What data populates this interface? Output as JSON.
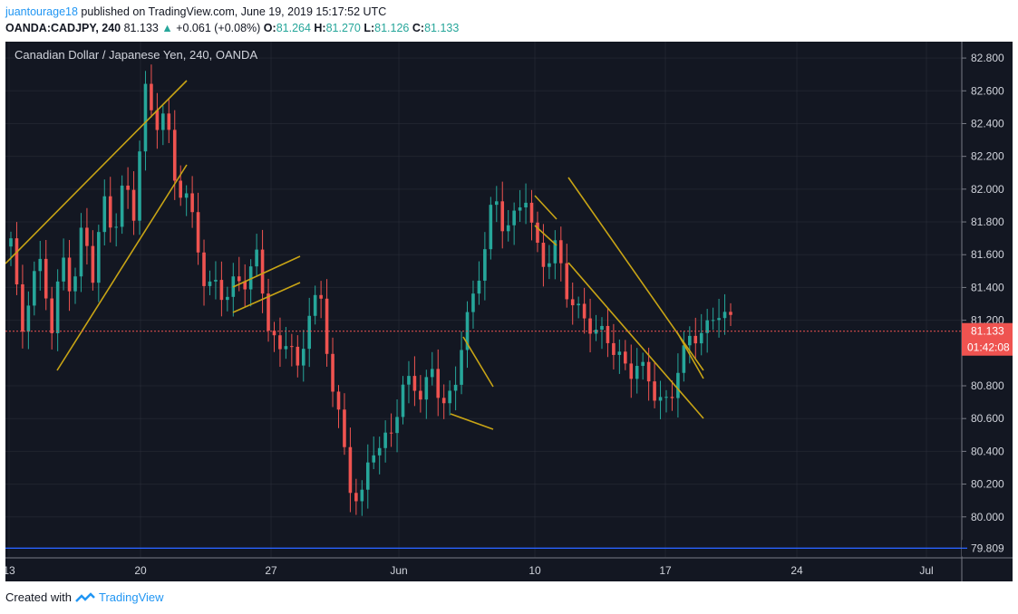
{
  "header": {
    "author": "juantourage18",
    "published_text": "published on TradingView.com, June 19, 2019 15:17:52 UTC",
    "symbol": "OANDA:CADJPY, 240",
    "last": "81.133",
    "change_arrow": "▲",
    "change": "+0.061 (+0.08%)",
    "o_label": "O:",
    "o_value": "81.264",
    "h_label": "H:",
    "h_value": "81.270",
    "l_label": "L:",
    "l_value": "81.126",
    "c_label": "C:",
    "c_value": "81.133"
  },
  "chart_data": {
    "type": "candlestick",
    "title": "Canadian Dollar / Japanese Yen, 240, OANDA",
    "x_tick_labels": [
      "13",
      "20",
      "27",
      "Jun",
      "10",
      "17",
      "24",
      "Jul"
    ],
    "y_tick_labels": [
      "82.800",
      "82.600",
      "82.400",
      "82.200",
      "82.000",
      "81.800",
      "81.600",
      "81.400",
      "81.200",
      "80.800",
      "80.600",
      "80.400",
      "80.200",
      "80.000"
    ],
    "ylim": [
      79.75,
      82.9
    ],
    "last_price": 81.133,
    "last_price_label": "81.133",
    "countdown_label": "01:42:08",
    "support_level": 79.809,
    "support_label": "79.809",
    "colors": {
      "up": "#26a69a",
      "down": "#ef5350",
      "background": "#131722",
      "grid": "#363a45",
      "trendline": "#c8a415",
      "price_line": "#ef5350",
      "support_line": "#2962ff"
    },
    "candles_anchor_closes": [
      81.7,
      81.05,
      81.4,
      81.55,
      81.2,
      81.62,
      81.35,
      81.72,
      81.45,
      81.95,
      81.8,
      82.05,
      81.82,
      82.55,
      82.4,
      82.5,
      82.1,
      81.95,
      81.7,
      81.3,
      81.45,
      81.38,
      81.5,
      81.42,
      81.55,
      81.15,
      81.0,
      81.2,
      80.85,
      81.25,
      81.3,
      80.9,
      80.6,
      80.25,
      80.05,
      80.4,
      80.35,
      80.55,
      80.8,
      80.9,
      80.7,
      80.85,
      80.65,
      80.75,
      81.2,
      81.35,
      81.6,
      81.9,
      81.75,
      81.85,
      82.05,
      81.65,
      81.5,
      81.6,
      81.4,
      81.3,
      81.25,
      81.1,
      81.05,
      80.95,
      80.9,
      81.0,
      80.85,
      80.7,
      80.6,
      80.95,
      81.1,
      81.2,
      81.15,
      81.25,
      81.13
    ]
  }
}
